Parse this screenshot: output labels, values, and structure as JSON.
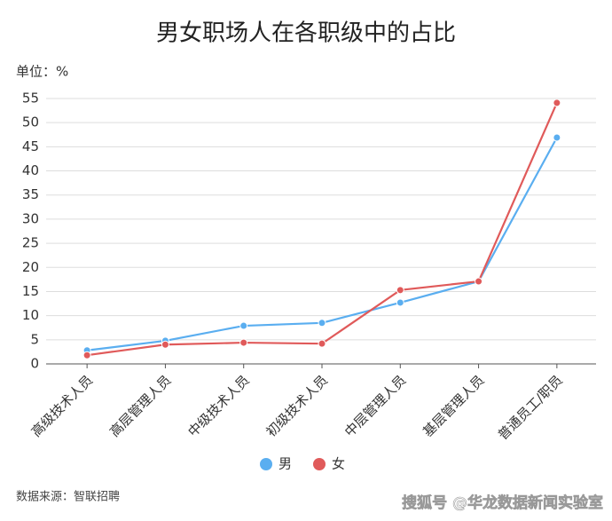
{
  "chart_data": {
    "type": "line",
    "title": "男女职场人在各职级中的占比",
    "subtitle": "单位：%",
    "categories": [
      "高级技术人员",
      "高层管理人员",
      "中级技术人员",
      "初级技术人员",
      "中层管理人员",
      "基层管理人员",
      "普通员工/职员"
    ],
    "series": [
      {
        "name": "男",
        "color": "#5aaef0",
        "values": [
          2.8,
          4.8,
          7.9,
          8.5,
          12.7,
          17.1,
          46.9
        ]
      },
      {
        "name": "女",
        "color": "#e05a5a",
        "values": [
          1.8,
          4.0,
          4.4,
          4.2,
          15.3,
          17.1,
          54.1
        ]
      }
    ],
    "ylim": [
      0,
      55
    ],
    "yticks": [
      0,
      5,
      10,
      15,
      20,
      25,
      30,
      35,
      40,
      45,
      50,
      55
    ],
    "grid": true,
    "source": "数据来源：智联招聘",
    "watermark": "搜狐号 @华龙数据新闻实验室"
  }
}
